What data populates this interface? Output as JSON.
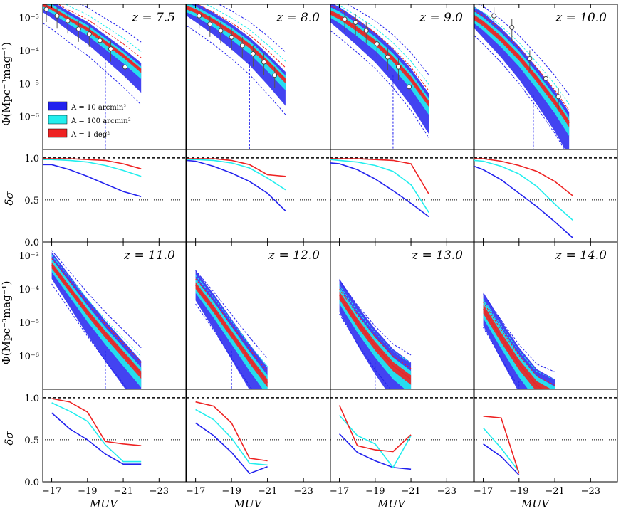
{
  "figure": {
    "ylabel_phi": "Φ(Mpc⁻³mag⁻¹)",
    "ylabel_delta": "δσ",
    "xlabel": "MUV",
    "x_tick_labels": [
      "−17",
      "−19",
      "−21",
      "−23"
    ],
    "phi_tick_labels": [
      "10⁻³",
      "10⁻⁴",
      "10⁻⁵",
      "10⁻⁶"
    ],
    "delta_tick_labels": [
      "1.0",
      "0.5",
      "0.0"
    ],
    "legend": [
      {
        "label": "A = 10 arcmin²",
        "color": "#2222ee"
      },
      {
        "label": "A = 100 arcmin²",
        "color": "#22eeee"
      },
      {
        "label": "A = 1 deg²",
        "color": "#ee2222"
      }
    ],
    "colors": {
      "blue": "#2222ee",
      "cyan": "#22eeee",
      "red": "#ee2222",
      "points": "#444444"
    }
  },
  "chart_data": [
    {
      "type": "line",
      "title": "z = 7.5",
      "xlabel": "MUV",
      "ylabel": "Φ (Mpc^-3 mag^-1)",
      "xlim": [
        -16.5,
        -24.5
      ],
      "ylim_log10": [
        -7.0,
        -2.6
      ],
      "phi_median": {
        "x": [
          -16.5,
          -17,
          -18,
          -19,
          -20,
          -21,
          -22
        ],
        "log_phi": [
          -2.62,
          -2.72,
          -3.05,
          -3.35,
          -3.75,
          -4.15,
          -4.6
        ]
      },
      "bands": {
        "blue_half_width_dex": 0.22,
        "cyan_half_width_dex": 0.12,
        "red_half_width_dex": 0.05
      },
      "observed_points": {
        "x": [
          -16.7,
          -17.3,
          -17.9,
          -18.5,
          -19.1,
          -19.7,
          -20.3,
          -21.1
        ],
        "log_phi": [
          -2.75,
          -2.95,
          -3.1,
          -3.35,
          -3.5,
          -3.7,
          -3.95,
          -4.5
        ]
      },
      "delta_sigma": {
        "x": [
          -16.5,
          -17,
          -18,
          -19,
          -20,
          -21,
          -22
        ],
        "A10arcmin2": [
          0.92,
          0.92,
          0.86,
          0.78,
          0.69,
          0.6,
          0.54
        ],
        "A100arcmin2": [
          0.98,
          0.98,
          0.97,
          0.95,
          0.91,
          0.85,
          0.78
        ],
        "A1deg2": [
          0.99,
          0.99,
          0.99,
          0.98,
          0.97,
          0.93,
          0.87
        ]
      }
    },
    {
      "type": "line",
      "title": "z = 8.0",
      "xlabel": "MUV",
      "ylabel": "Φ (Mpc^-3 mag^-1)",
      "xlim": [
        -16.5,
        -24.5
      ],
      "ylim_log10": [
        -7.0,
        -2.6
      ],
      "phi_median": {
        "x": [
          -16.5,
          -17,
          -18,
          -19,
          -20,
          -21,
          -22
        ],
        "log_phi": [
          -2.7,
          -2.8,
          -3.1,
          -3.45,
          -3.85,
          -4.35,
          -4.9
        ]
      },
      "bands": {
        "blue_half_width_dex": 0.25,
        "cyan_half_width_dex": 0.14,
        "red_half_width_dex": 0.06
      },
      "observed_points": {
        "x": [
          -17.2,
          -17.8,
          -18.4,
          -19.0,
          -19.6,
          -20.2,
          -20.8,
          -21.4
        ],
        "log_phi": [
          -2.95,
          -3.2,
          -3.4,
          -3.6,
          -3.85,
          -4.1,
          -4.35,
          -4.75
        ]
      },
      "delta_sigma": {
        "x": [
          -16.5,
          -17,
          -18,
          -19,
          -20,
          -21,
          -22
        ],
        "A10arcmin2": [
          0.97,
          0.96,
          0.9,
          0.82,
          0.72,
          0.58,
          0.37
        ],
        "A100arcmin2": [
          0.98,
          0.98,
          0.97,
          0.94,
          0.88,
          0.76,
          0.62
        ],
        "A1deg2": [
          0.99,
          0.99,
          0.99,
          0.97,
          0.92,
          0.8,
          0.78
        ]
      }
    },
    {
      "type": "line",
      "title": "z = 9.0",
      "xlabel": "MUV",
      "ylabel": "Φ (Mpc^-3 mag^-1)",
      "xlim": [
        -16.5,
        -24.5
      ],
      "ylim_log10": [
        -7.0,
        -2.6
      ],
      "phi_median": {
        "x": [
          -16.5,
          -17,
          -18,
          -19,
          -20,
          -21,
          -22
        ],
        "log_phi": [
          -2.85,
          -2.98,
          -3.35,
          -3.75,
          -4.25,
          -4.85,
          -5.6
        ]
      },
      "bands": {
        "blue_half_width_dex": 0.3,
        "cyan_half_width_dex": 0.16,
        "red_half_width_dex": 0.07
      },
      "observed_points": {
        "x": [
          -17.3,
          -17.9,
          -18.5,
          -19.1,
          -19.7,
          -20.3,
          -20.9
        ],
        "log_phi": [
          -3.05,
          -3.15,
          -3.4,
          -3.8,
          -4.2,
          -4.5,
          -5.1
        ]
      },
      "delta_sigma": {
        "x": [
          -16.5,
          -17,
          -18,
          -19,
          -20,
          -21,
          -22
        ],
        "A10arcmin2": [
          0.94,
          0.93,
          0.86,
          0.75,
          0.61,
          0.46,
          0.3
        ],
        "A100arcmin2": [
          0.98,
          0.97,
          0.95,
          0.91,
          0.84,
          0.68,
          0.35
        ],
        "A1deg2": [
          0.99,
          0.99,
          0.99,
          0.98,
          0.97,
          0.93,
          0.57
        ]
      }
    },
    {
      "type": "line",
      "title": "z = 10.0",
      "xlabel": "MUV",
      "ylabel": "Φ (Mpc^-3 mag^-1)",
      "xlim": [
        -16.5,
        -24.5
      ],
      "ylim_log10": [
        -7.0,
        -2.6
      ],
      "phi_median": {
        "x": [
          -16.5,
          -17,
          -18,
          -19,
          -20,
          -21,
          -21.8
        ],
        "log_phi": [
          -3.0,
          -3.18,
          -3.65,
          -4.2,
          -4.85,
          -5.55,
          -6.2
        ]
      },
      "bands": {
        "blue_half_width_dex": 0.33,
        "cyan_half_width_dex": 0.18,
        "red_half_width_dex": 0.08
      },
      "observed_points": {
        "x": [
          -17.6,
          -18.6,
          -19.6,
          -20.5,
          -21.2
        ],
        "log_phi": [
          -2.95,
          -3.3,
          -4.25,
          -4.85,
          -5.4
        ]
      },
      "delta_sigma": {
        "x": [
          -16.5,
          -17,
          -18,
          -19,
          -20,
          -21,
          -22
        ],
        "A10arcmin2": [
          0.9,
          0.86,
          0.74,
          0.58,
          0.42,
          0.24,
          0.05
        ],
        "A100arcmin2": [
          0.97,
          0.96,
          0.9,
          0.81,
          0.66,
          0.45,
          0.26
        ],
        "A1deg2": [
          0.99,
          0.99,
          0.96,
          0.91,
          0.84,
          0.72,
          0.55
        ]
      }
    },
    {
      "type": "line",
      "title": "z = 11.0",
      "xlabel": "MUV",
      "ylabel": "Φ (Mpc^-3 mag^-1)",
      "xlim": [
        -16.5,
        -24.5
      ],
      "ylim_log10": [
        -7.0,
        -2.6
      ],
      "phi_median": {
        "x": [
          -17,
          -18,
          -19,
          -20,
          -21,
          -22
        ],
        "log_phi": [
          -3.3,
          -4.0,
          -4.7,
          -5.35,
          -5.95,
          -6.55
        ]
      },
      "bands": {
        "blue_half_width_dex": 0.4,
        "cyan_half_width_dex": 0.2,
        "red_half_width_dex": 0.09
      },
      "observed_points": {
        "x": [],
        "log_phi": []
      },
      "delta_sigma": {
        "x": [
          -17,
          -18,
          -19,
          -20,
          -21,
          -22
        ],
        "A10arcmin2": [
          0.82,
          0.63,
          0.5,
          0.33,
          0.21,
          0.21
        ],
        "A100arcmin2": [
          0.94,
          0.84,
          0.72,
          0.44,
          0.24,
          0.24
        ],
        "A1deg2": [
          0.99,
          0.95,
          0.83,
          0.48,
          0.45,
          0.43
        ]
      }
    },
    {
      "type": "line",
      "title": "z = 12.0",
      "xlabel": "MUV",
      "ylabel": "Φ (Mpc^-3 mag^-1)",
      "xlim": [
        -16.5,
        -24.5
      ],
      "ylim_log10": [
        -7.0,
        -2.6
      ],
      "phi_median": {
        "x": [
          -17,
          -18,
          -19,
          -20,
          -21
        ],
        "log_phi": [
          -3.9,
          -4.6,
          -5.35,
          -6.1,
          -6.8
        ]
      },
      "bands": {
        "blue_half_width_dex": 0.45,
        "cyan_half_width_dex": 0.22,
        "red_half_width_dex": 0.1
      },
      "observed_points": {
        "x": [],
        "log_phi": []
      },
      "delta_sigma": {
        "x": [
          -17,
          -18,
          -19,
          -20,
          -21
        ],
        "A10arcmin2": [
          0.7,
          0.55,
          0.35,
          0.1,
          0.18
        ],
        "A100arcmin2": [
          0.86,
          0.74,
          0.52,
          0.22,
          0.2
        ],
        "A1deg2": [
          0.95,
          0.9,
          0.7,
          0.28,
          0.25
        ]
      }
    },
    {
      "type": "line",
      "title": "z = 13.0",
      "xlabel": "MUV",
      "ylabel": "Φ (Mpc^-3 mag^-1)",
      "xlim": [
        -16.5,
        -24.5
      ],
      "ylim_log10": [
        -7.0,
        -2.6
      ],
      "phi_median": {
        "x": [
          -17,
          -18,
          -19,
          -20,
          -21
        ],
        "log_phi": [
          -4.2,
          -5.0,
          -5.7,
          -6.3,
          -6.7
        ]
      },
      "bands": {
        "blue_half_width_dex": 0.5,
        "cyan_half_width_dex": 0.25,
        "red_half_width_dex": 0.12
      },
      "observed_points": {
        "x": [],
        "log_phi": []
      },
      "delta_sigma": {
        "x": [
          -17,
          -18,
          -19,
          -20,
          -21
        ],
        "A10arcmin2": [
          0.57,
          0.35,
          0.25,
          0.17,
          0.15
        ],
        "A100arcmin2": [
          0.79,
          0.55,
          0.45,
          0.17,
          0.55
        ],
        "A1deg2": [
          0.91,
          0.43,
          0.38,
          0.36,
          0.56
        ]
      }
    },
    {
      "type": "line",
      "title": "z = 14.0",
      "xlabel": "MUV",
      "ylabel": "Φ (Mpc^-3 mag^-1)",
      "xlim": [
        -16.5,
        -24.5
      ],
      "ylim_log10": [
        -7.0,
        -2.6
      ],
      "phi_median": {
        "x": [
          -17,
          -18,
          -19,
          -20,
          -21
        ],
        "log_phi": [
          -4.6,
          -5.45,
          -6.25,
          -6.9,
          -7.2
        ]
      },
      "bands": {
        "blue_half_width_dex": 0.5,
        "cyan_half_width_dex": 0.28,
        "red_half_width_dex": 0.14
      },
      "observed_points": {
        "x": [],
        "log_phi": []
      },
      "delta_sigma": {
        "x": [
          -17,
          -18,
          -19
        ],
        "A10arcmin2": [
          0.45,
          0.3,
          0.08
        ],
        "A100arcmin2": [
          0.64,
          0.4,
          0.12
        ],
        "A1deg2": [
          0.78,
          0.76,
          0.1
        ]
      }
    }
  ]
}
